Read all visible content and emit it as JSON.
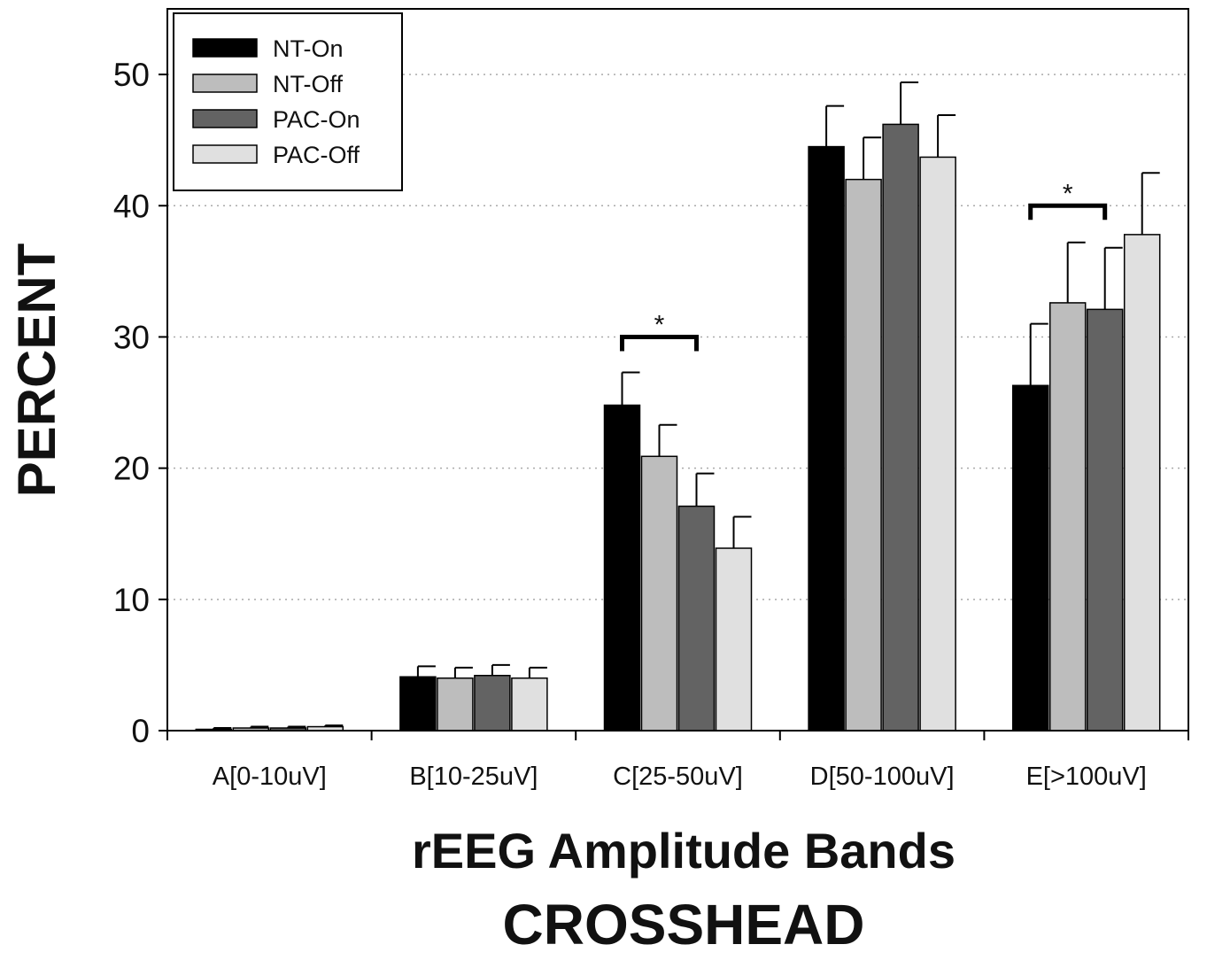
{
  "chart_data": {
    "type": "bar",
    "xlabel": "rEEG Amplitude Bands",
    "ylabel": "PERCENT",
    "caption": "CROSSHEAD",
    "ylim": [
      0,
      55
    ],
    "yticks": [
      0,
      10,
      20,
      30,
      40,
      50
    ],
    "grid": "horizontal-dotted",
    "legend_position": "top-left",
    "categories": [
      "A[0-10uV]",
      "B[10-25uV]",
      "C[25-50uV]",
      "D[50-100uV]",
      "E[>100uV]"
    ],
    "series": [
      {
        "name": "NT-On",
        "color": "#000000",
        "values": [
          0.1,
          4.1,
          24.8,
          44.5,
          26.3
        ],
        "errors": [
          0.1,
          0.8,
          2.5,
          3.1,
          4.7
        ]
      },
      {
        "name": "NT-Off",
        "color": "#bdbdbd",
        "values": [
          0.2,
          4.0,
          20.9,
          42.0,
          32.6
        ],
        "errors": [
          0.1,
          0.8,
          2.4,
          3.2,
          4.6
        ]
      },
      {
        "name": "PAC-On",
        "color": "#636363",
        "values": [
          0.2,
          4.2,
          17.1,
          46.2,
          32.1
        ],
        "errors": [
          0.1,
          0.8,
          2.5,
          3.2,
          4.7
        ]
      },
      {
        "name": "PAC-Off",
        "color": "#e0e0e0",
        "values": [
          0.3,
          4.0,
          13.9,
          43.7,
          37.8
        ],
        "errors": [
          0.1,
          0.8,
          2.4,
          3.2,
          4.7
        ]
      }
    ],
    "significance": [
      {
        "category_index": 2,
        "from_series": 0,
        "to_series": 2,
        "label": "*",
        "y": 30
      },
      {
        "category_index": 4,
        "from_series": 0,
        "to_series": 2,
        "label": "*",
        "y": 40
      }
    ]
  }
}
